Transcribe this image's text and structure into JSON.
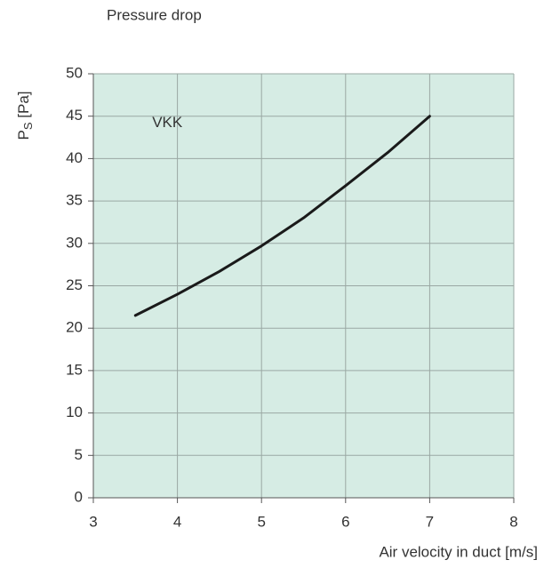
{
  "chart_data": {
    "type": "line",
    "title": "Pressure drop",
    "ylabel_parts": [
      "P",
      "S",
      " [Pa]"
    ],
    "xlabel": "Air velocity in duct [m/s]",
    "annotation": "VKK",
    "x": [
      3.5,
      4,
      4.5,
      5,
      5.5,
      6,
      6.5,
      7
    ],
    "series": [
      {
        "name": "VKK",
        "color": "#1a1a1a",
        "values": [
          21.5,
          24,
          26.7,
          29.7,
          33,
          36.8,
          40.7,
          45
        ]
      }
    ],
    "xlim": [
      3,
      8
    ],
    "xticks": [
      3,
      4,
      5,
      6,
      7,
      8
    ],
    "ylim": [
      0,
      50
    ],
    "yticks": [
      0,
      5,
      10,
      15,
      20,
      25,
      30,
      35,
      40,
      45,
      50
    ],
    "grid": true,
    "plot_background": "#d6ece4"
  }
}
